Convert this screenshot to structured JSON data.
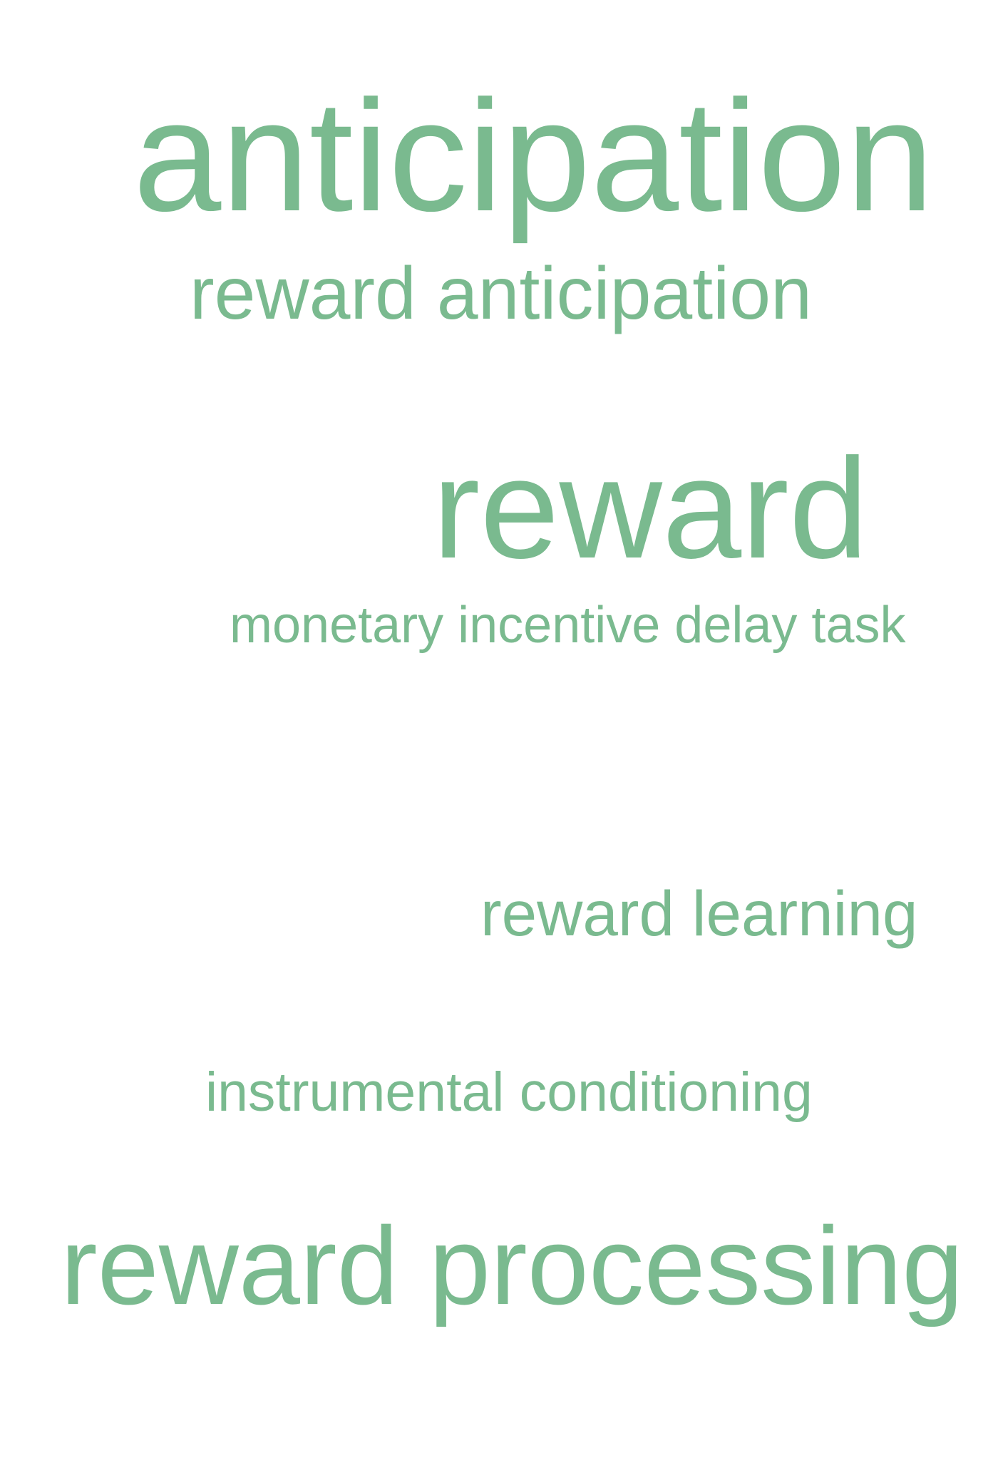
{
  "word_cloud": {
    "text_color": "#7aba8f",
    "terms": [
      "anticipation",
      "reward anticipation",
      "reward",
      "monetary incentive delay task",
      "reward learning",
      "instrumental conditioning",
      "reward processing"
    ]
  }
}
